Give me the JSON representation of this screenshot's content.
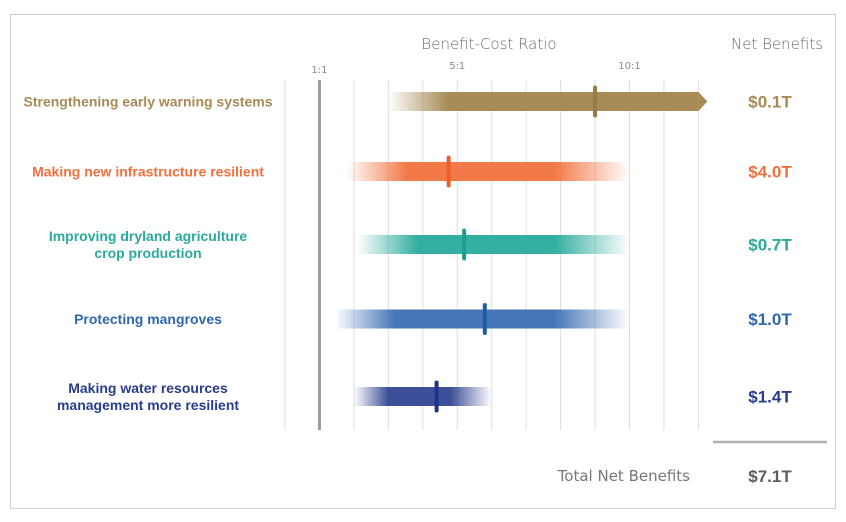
{
  "chart_data": {
    "type": "bar",
    "subtype": "range-with-marker",
    "title": "",
    "xlabel": "Benefit-Cost Ratio",
    "right_column_header": "Net Benefits",
    "x_range": [
      0,
      12.5
    ],
    "reference_line": {
      "value": 1,
      "label": "1:1"
    },
    "ticks": [
      {
        "value": 1,
        "label": "1:1"
      },
      {
        "value": 5,
        "label": "5:1"
      },
      {
        "value": 10,
        "label": "10:1"
      }
    ],
    "gridlines": [
      0,
      1,
      2,
      3,
      4,
      5,
      6,
      7,
      8,
      9,
      10,
      11,
      12
    ],
    "grid": true,
    "series": [
      {
        "name": "Strengthening early warning systems",
        "label_lines": [
          "Strengthening early warning systems"
        ],
        "color": "#a88a56",
        "marker_color": "#9a7b45",
        "low": 3.0,
        "high": 12.0,
        "open_ended": true,
        "central": 9.0,
        "net_benefits": "$0.1T"
      },
      {
        "name": "Making new infrastructure resilient",
        "label_lines": [
          "Making new infrastructure resilient"
        ],
        "color": "#f27a48",
        "marker_color": "#ef5f28",
        "low": 1.8,
        "high": 10.0,
        "open_ended": false,
        "central": 4.75,
        "net_benefits": "$4.0T"
      },
      {
        "name": "Improving dryland agriculture crop production",
        "label_lines": [
          "Improving dryland agriculture",
          "crop production"
        ],
        "color": "#33afa1",
        "marker_color": "#1e9e90",
        "low": 2.1,
        "high": 10.0,
        "open_ended": false,
        "central": 5.2,
        "net_benefits": "$0.7T"
      },
      {
        "name": "Protecting mangroves",
        "label_lines": [
          "Protecting mangroves"
        ],
        "color": "#4577b8",
        "marker_color": "#1f5aa8",
        "low": 1.45,
        "high": 10.0,
        "open_ended": false,
        "central": 5.8,
        "net_benefits": "$1.0T"
      },
      {
        "name": "Making water resources management more resilient",
        "label_lines": [
          "Making water resources",
          "management more resilient"
        ],
        "color": "#3d4f98",
        "marker_color": "#1f338a",
        "low": 2.0,
        "high": 6.0,
        "open_ended": false,
        "central": 4.4,
        "net_benefits": "$1.4T"
      }
    ],
    "label_colors": [
      "#a88a56",
      "#f0713f",
      "#2aa99c",
      "#2f67ad",
      "#283d8c"
    ],
    "total": {
      "label": "Total Net Benefits",
      "value": "$7.1T",
      "color": "#5d5d5d"
    },
    "legend": "none"
  }
}
